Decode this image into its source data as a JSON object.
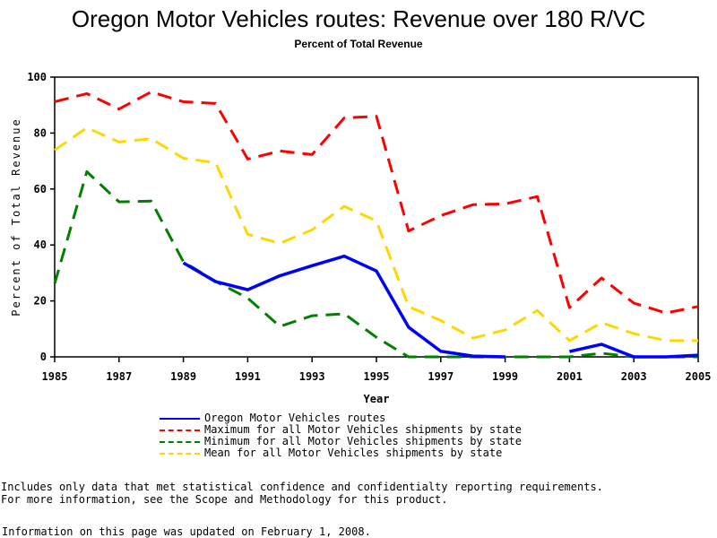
{
  "chart_data": {
    "type": "line",
    "title": "Oregon Motor Vehicles routes: Revenue over 180 R/VC",
    "subtitle": "Percent of Total Revenue",
    "xlabel": "Year",
    "ylabel": "Percent of Total Revenue",
    "xlim": [
      1985,
      2005
    ],
    "ylim": [
      0,
      100
    ],
    "x_ticks": [
      1985,
      1987,
      1989,
      1991,
      1993,
      1995,
      1997,
      1999,
      2001,
      2003,
      2005
    ],
    "y_ticks": [
      0,
      20,
      40,
      60,
      80,
      100
    ],
    "grid": false,
    "legend_position": "bottom",
    "x": [
      1985,
      1986,
      1987,
      1988,
      1989,
      1990,
      1991,
      1992,
      1993,
      1994,
      1995,
      1996,
      1997,
      1998,
      1999,
      2000,
      2001,
      2002,
      2003,
      2004,
      2005
    ],
    "series": [
      {
        "name": "Oregon Motor Vehicles routes",
        "color": "#0000ff",
        "style": "solid",
        "values": [
          null,
          null,
          null,
          null,
          33.6,
          26.9,
          24.0,
          29.0,
          32.6,
          36.0,
          30.7,
          10.6,
          2.0,
          0.3,
          0.0,
          null,
          1.9,
          4.5,
          0.0,
          0.0,
          0.6
        ]
      },
      {
        "name": "Maximum for all Motor Vehicles shipments by state",
        "color": "#ff0000",
        "style": "dashed",
        "values": [
          91.2,
          94.1,
          88.6,
          94.7,
          91.2,
          90.6,
          70.7,
          73.6,
          72.3,
          85.4,
          86.0,
          45.0,
          50.5,
          54.4,
          54.7,
          57.3,
          17.6,
          28.2,
          19.2,
          15.7,
          18.0
        ]
      },
      {
        "name": "Minimum for all Motor Vehicles shipments by state",
        "color": "#008000",
        "style": "dashed",
        "values": [
          26.2,
          66.2,
          55.4,
          55.7,
          34.0,
          27.0,
          21.0,
          10.9,
          14.7,
          15.4,
          7.0,
          0.0,
          0.0,
          0.0,
          0.0,
          0.0,
          0.0,
          1.3,
          0.0,
          0.0,
          0.0
        ]
      },
      {
        "name": "Mean for all Motor Vehicles shipments by state",
        "color": "#ffd700",
        "style": "dashed",
        "values": [
          73.9,
          81.9,
          76.8,
          78.0,
          71.0,
          69.4,
          43.8,
          40.6,
          45.4,
          53.8,
          48.6,
          18.0,
          13.0,
          6.7,
          9.6,
          16.6,
          5.8,
          12.2,
          8.3,
          5.8,
          5.8
        ]
      }
    ]
  },
  "footnotes": {
    "line1": "Includes only data that met statistical confidence and confidentialty reporting requirements.",
    "line2": "For more information, see the Scope and Methodology for this product.",
    "updated": "Information on this page was updated on February 1, 2008."
  }
}
